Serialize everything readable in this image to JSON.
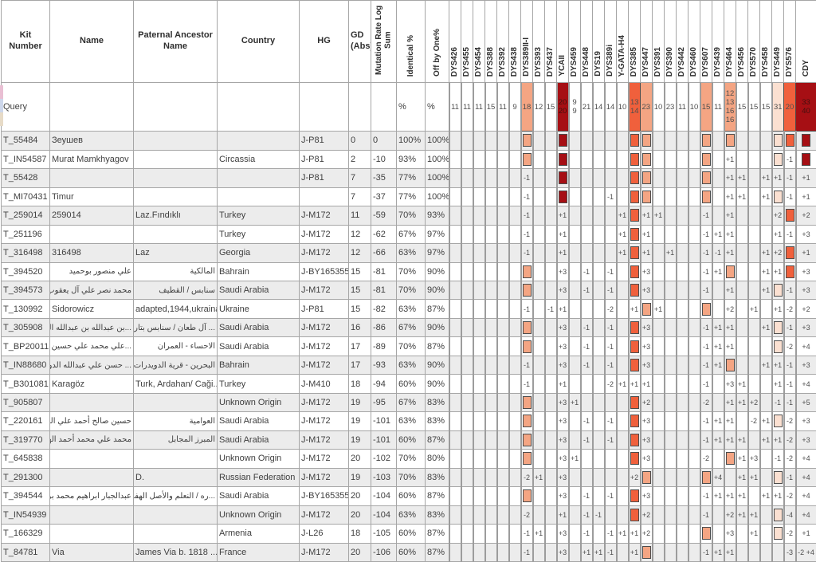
{
  "palette": {
    "highlight_light": "#f4a583",
    "highlight_strong": "#f0603c",
    "highlight_dark": "#a60f14",
    "highlight_pale": "#fbe0d1",
    "alt_row": "#ececec",
    "grid": "#a6a6a6"
  },
  "edge_artifact_colors": [
    "#e9bfd3",
    "#cdd7eb",
    "#e7dbc7"
  ],
  "table": {
    "info_headers": [
      "Kit Number",
      "Name",
      "Paternal Ancestor Name",
      "Country",
      "HG",
      "GD (Abs)"
    ],
    "rotated_headers": [
      "Mutation Rate Log Sum",
      "Identical %",
      "Off by One%"
    ],
    "marker_headers": [
      "DYS426",
      "DYS455",
      "DYS454",
      "DYS388",
      "DYS392",
      "DYS438",
      "DYS389II-I",
      "DYS393",
      "DYS437",
      "YCAII",
      "DYS459",
      "DYS448",
      "DYS19",
      "DYS389i",
      "Y-GATA-H4",
      "DYS385",
      "DYS447",
      "DYS391",
      "DYS390",
      "DYS442",
      "DYS460",
      "DYS607",
      "DYS439",
      "DYS464",
      "DYS456",
      "DYS570",
      "DYS458",
      "DYS449",
      "DYS576",
      "CDY"
    ],
    "marker_highlights": {
      "DYS389II-I": "light",
      "YCAII": "dark",
      "DYS385": "strong",
      "DYS447": "light",
      "DYS607": "light",
      "DYS464": "light",
      "DYS449": "pale",
      "DYS576": "strong",
      "CDY": "dark"
    },
    "query_row": {
      "label": "Query",
      "identical": "%",
      "off_by_one": "%",
      "markers": [
        "11",
        "11",
        "11",
        "15",
        "11",
        "9",
        "18",
        "12",
        "15",
        "20/20",
        "9/9",
        "21",
        "14",
        "14",
        "10",
        "13/14",
        "23",
        "10",
        "23",
        "11",
        "10",
        "15",
        "11",
        "12/13/16/16",
        "15",
        "15",
        "15",
        "31",
        "20",
        "33/40"
      ]
    },
    "rows": [
      {
        "kit": "T_55484",
        "name": "Зеушев",
        "paternal": "",
        "country": "",
        "hg": "J-P81",
        "gd": "0",
        "mut_rate": "0",
        "identical": "100%",
        "off_by_one": "100%",
        "markers": {
          "DYS389II-I": "box",
          "YCAII": "box",
          "DYS385": "box",
          "DYS447": "box",
          "DYS607": "box",
          "DYS464": "box",
          "DYS449": "box",
          "DYS576": "box",
          "CDY": "box"
        }
      },
      {
        "kit": "T_IN54587",
        "name": "Murat Mamkhyagov",
        "paternal": "",
        "country": "Circassia",
        "hg": "J-P81",
        "gd": "2",
        "mut_rate": "-10",
        "identical": "93%",
        "off_by_one": "100%",
        "markers": {
          "DYS389II-I": "box",
          "YCAII": "box",
          "DYS385": "box",
          "DYS447": "box",
          "DYS607": "box",
          "DYS464": "+1",
          "DYS449": "box",
          "DYS576": "-1",
          "CDY": "box"
        }
      },
      {
        "kit": "T_55428",
        "name": "",
        "paternal": "",
        "country": "",
        "hg": "J-P81",
        "gd": "7",
        "mut_rate": "-35",
        "identical": "77%",
        "off_by_one": "100%",
        "markers": {
          "DYS389II-I": "-1",
          "YCAII": "box",
          "DYS385": "box",
          "DYS447": "box",
          "DYS607": "box",
          "DYS464": "+1",
          "DYS456": "+1",
          "DYS458": "+1",
          "DYS449": "+1",
          "DYS576": "-1",
          "CDY": "+1"
        }
      },
      {
        "kit": "T_MI70431",
        "name": "Timur",
        "paternal": "",
        "country": "",
        "hg": "",
        "gd": "7",
        "mut_rate": "-37",
        "identical": "77%",
        "off_by_one": "100%",
        "markers": {
          "DYS389II-I": "-1",
          "YCAII": "box",
          "DYS389i": "-1",
          "DYS385": "box",
          "DYS447": "box",
          "DYS607": "box",
          "DYS464": "+1",
          "DYS456": "+1",
          "DYS458": "+1",
          "DYS449": "box",
          "DYS576": "-1",
          "CDY": "+1"
        }
      },
      {
        "kit": "T_259014",
        "name": "259014",
        "paternal": "Laz.Fındıklı",
        "country": "Turkey",
        "hg": "J-M172",
        "gd": "11",
        "mut_rate": "-59",
        "identical": "70%",
        "off_by_one": "93%",
        "markers": {
          "DYS389II-I": "-1",
          "YCAII": "+1",
          "Y-GATA-H4": "+1",
          "DYS385": "box",
          "DYS447": "+1",
          "DYS391": "+1",
          "DYS607": "-1",
          "DYS464": "+1",
          "DYS449": "+2",
          "DYS576": "box",
          "CDY": "+2"
        }
      },
      {
        "kit": "T_251196",
        "name": "",
        "paternal": "",
        "country": "Turkey",
        "hg": "J-M172",
        "gd": "12",
        "mut_rate": "-62",
        "identical": "67%",
        "off_by_one": "97%",
        "markers": {
          "DYS389II-I": "-1",
          "YCAII": "+1",
          "Y-GATA-H4": "+1",
          "DYS385": "box",
          "DYS447": "+1",
          "DYS607": "-1",
          "DYS439": "+1",
          "DYS464": "+1",
          "DYS449": "+1",
          "DYS576": "-1",
          "CDY": "+3"
        }
      },
      {
        "kit": "T_316498",
        "name": "316498",
        "paternal": "Laz",
        "country": "Georgia",
        "hg": "J-M172",
        "gd": "12",
        "mut_rate": "-66",
        "identical": "63%",
        "off_by_one": "97%",
        "markers": {
          "DYS389II-I": "-1",
          "YCAII": "+1",
          "Y-GATA-H4": "+1",
          "DYS385": "box",
          "DYS447": "+1",
          "DYS390": "+1",
          "DYS607": "-1",
          "DYS439": "-1",
          "DYS464": "+1",
          "DYS458": "+1",
          "DYS449": "+2",
          "DYS576": "box",
          "CDY": "+1"
        }
      },
      {
        "kit": "T_394520",
        "name": "علي منصور بوحميد",
        "paternal": "المالكية",
        "country": "Bahrain",
        "hg": "J-BY165355",
        "gd": "15",
        "mut_rate": "-81",
        "identical": "70%",
        "off_by_one": "90%",
        "markers": {
          "DYS389II-I": "box",
          "YCAII": "+3",
          "DYS448": "-1",
          "DYS389i": "-1",
          "DYS385": "box",
          "DYS447": "+3",
          "DYS607": "-1",
          "DYS439": "+1",
          "DYS464": "box",
          "DYS458": "+1",
          "DYS449": "+1",
          "DYS576": "box",
          "CDY": "+3"
        }
      },
      {
        "kit": "T_394573",
        "name": "محمد نصر علي آل يعقوب",
        "paternal": "سنابس / القطيف",
        "country": "Saudi Arabia",
        "hg": "J-M172",
        "gd": "15",
        "mut_rate": "-81",
        "identical": "70%",
        "off_by_one": "90%",
        "markers": {
          "DYS389II-I": "box",
          "YCAII": "+3",
          "DYS448": "-1",
          "DYS389i": "-1",
          "DYS385": "box",
          "DYS447": "+3",
          "DYS607": "-1",
          "DYS464": "+1",
          "DYS458": "+1",
          "DYS449": "box",
          "DYS576": "-1",
          "CDY": "+3"
        }
      },
      {
        "kit": "T_130992",
        "name": "Sidorowicz",
        "paternal": "adapted,1944,ukraina",
        "country": "Ukraine",
        "hg": "J-P81",
        "gd": "15",
        "mut_rate": "-82",
        "identical": "63%",
        "off_by_one": "87%",
        "markers": {
          "DYS389II-I": "-1",
          "DYS437": "-1",
          "YCAII": "+1",
          "DYS389i": "-2",
          "DYS385": "+1",
          "DYS447": "box",
          "DYS391": "+1",
          "DYS607": "box",
          "DYS464": "+2",
          "DYS570": "+1",
          "DYS449": "+1",
          "DYS576": "-2",
          "CDY": "+2"
        }
      },
      {
        "kit": "T_305908",
        "name": "...بن عبدالله بن عبدالله البحارنة",
        "paternal": "... آل طعان / سنابس بتاروت",
        "country": "Saudi Arabia",
        "hg": "J-M172",
        "gd": "16",
        "mut_rate": "-86",
        "identical": "67%",
        "off_by_one": "90%",
        "markers": {
          "DYS389II-I": "box",
          "YCAII": "+3",
          "DYS448": "-1",
          "DYS389i": "-1",
          "DYS385": "box",
          "DYS447": "+3",
          "DYS607": "-1",
          "DYS439": "+1",
          "DYS464": "+1",
          "DYS458": "+1",
          "DYS449": "box",
          "DYS576": "-1",
          "CDY": "+3"
        }
      },
      {
        "kit": "T_BP20011",
        "name": "...علي محمد علي حسين العلي",
        "paternal": "الاحساء - العمران",
        "country": "Saudi Arabia",
        "hg": "J-M172",
        "gd": "17",
        "mut_rate": "-89",
        "identical": "70%",
        "off_by_one": "87%",
        "markers": {
          "DYS389II-I": "box",
          "YCAII": "+3",
          "DYS448": "-1",
          "DYS389i": "-1",
          "DYS385": "box",
          "DYS447": "+3",
          "DYS607": "-1",
          "DYS439": "+1",
          "DYS464": "+1",
          "DYS449": "box",
          "DYS576": "-2",
          "CDY": "+4"
        }
      },
      {
        "kit": "T_IN88680",
        "name": "... حسن علي عبدالله الدويدري",
        "paternal": "البحرين - قرية الدويدرات",
        "country": "Bahrain",
        "hg": "J-M172",
        "gd": "17",
        "mut_rate": "-93",
        "identical": "63%",
        "off_by_one": "90%",
        "markers": {
          "DYS389II-I": "-1",
          "YCAII": "+3",
          "DYS448": "-1",
          "DYS389i": "-1",
          "DYS385": "box",
          "DYS447": "+3",
          "DYS607": "-1",
          "DYS439": "+1",
          "DYS464": "box",
          "DYS458": "+1",
          "DYS449": "+1",
          "DYS576": "-1",
          "CDY": "+3"
        }
      },
      {
        "kit": "T_B301081",
        "name": "Karagöz",
        "paternal": "Turk, Ardahan/ Caği...",
        "country": "Turkey",
        "hg": "J-M410",
        "gd": "18",
        "mut_rate": "-94",
        "identical": "60%",
        "off_by_one": "90%",
        "markers": {
          "DYS389II-I": "-1",
          "YCAII": "+1",
          "DYS389i": "-2",
          "Y-GATA-H4": "+1",
          "DYS385": "+1",
          "DYS447": "+1",
          "DYS607": "-1",
          "DYS464": "+3",
          "DYS456": "+1",
          "DYS449": "+1",
          "DYS576": "-1",
          "CDY": "+4"
        }
      },
      {
        "kit": "T_905807",
        "name": "",
        "paternal": "",
        "country": "Unknown Origin",
        "hg": "J-M172",
        "gd": "19",
        "mut_rate": "-95",
        "identical": "67%",
        "off_by_one": "83%",
        "markers": {
          "DYS389II-I": "box",
          "YCAII": "+3",
          "DYS459": "+1",
          "DYS385": "box",
          "DYS447": "+2",
          "DYS607": "-2",
          "DYS464": "+1",
          "DYS456": "+1",
          "DYS570": "+2",
          "DYS449": "-1",
          "DYS576": "-1",
          "CDY": "+5"
        }
      },
      {
        "kit": "T_220161",
        "name": "حسين صالح أحمد علي المبيوق",
        "paternal": "العوامية",
        "country": "Saudi Arabia",
        "hg": "J-M172",
        "gd": "19",
        "mut_rate": "-101",
        "identical": "63%",
        "off_by_one": "83%",
        "markers": {
          "DYS389II-I": "box",
          "YCAII": "+3",
          "DYS448": "-1",
          "DYS389i": "-1",
          "DYS385": "box",
          "DYS447": "+3",
          "DYS607": "-1",
          "DYS439": "+1",
          "DYS464": "+1",
          "DYS570": "-2",
          "DYS458": "+1",
          "DYS449": "box",
          "DYS576": "-2",
          "CDY": "+3"
        }
      },
      {
        "kit": "T_319770",
        "name": "محمد علي محمد أحمد الهفوفي",
        "paternal": "المبرز المجابل",
        "country": "Saudi Arabia",
        "hg": "J-M172",
        "gd": "19",
        "mut_rate": "-101",
        "identical": "60%",
        "off_by_one": "87%",
        "markers": {
          "DYS389II-I": "box",
          "YCAII": "+3",
          "DYS448": "-1",
          "DYS389i": "-1",
          "DYS385": "box",
          "DYS447": "+3",
          "DYS607": "-1",
          "DYS439": "+1",
          "DYS464": "+1",
          "DYS456": "+1",
          "DYS458": "+1",
          "DYS449": "+1",
          "DYS576": "-2",
          "CDY": "+3"
        }
      },
      {
        "kit": "T_645838",
        "name": "",
        "paternal": "",
        "country": "Unknown Origin",
        "hg": "J-M172",
        "gd": "20",
        "mut_rate": "-102",
        "identical": "70%",
        "off_by_one": "80%",
        "markers": {
          "DYS389II-I": "box",
          "YCAII": "+3",
          "DYS459": "+1",
          "DYS385": "box",
          "DYS447": "+3",
          "DYS607": "-2",
          "DYS464": "box",
          "DYS456": "+1",
          "DYS570": "+3",
          "DYS449": "-1",
          "DYS576": "-2",
          "CDY": "+4"
        }
      },
      {
        "kit": "T_291300",
        "name": "",
        "paternal": "D.",
        "country": "Russian Federation",
        "hg": "J-M172",
        "gd": "19",
        "mut_rate": "-103",
        "identical": "70%",
        "off_by_one": "83%",
        "markers": {
          "DYS389II-I": "-2",
          "DYS393": "+1",
          "YCAII": "+3",
          "DYS385": "+2",
          "DYS447": "box",
          "DYS607": "box",
          "DYS439": "+4",
          "DYS456": "+1",
          "DYS570": "+1",
          "DYS449": "box",
          "DYS576": "-1",
          "CDY": "+4"
        }
      },
      {
        "kit": "T_394544",
        "name": "عبدالجبار ابراهيم محمد بومره...",
        "paternal": "...ره / النعلم والأصل الهفوف",
        "country": "Saudi Arabia",
        "hg": "J-BY165355",
        "gd": "20",
        "mut_rate": "-104",
        "identical": "60%",
        "off_by_one": "87%",
        "markers": {
          "DYS389II-I": "box",
          "YCAII": "+3",
          "DYS448": "-1",
          "DYS389i": "-1",
          "DYS385": "box",
          "DYS447": "+3",
          "DYS607": "-1",
          "DYS439": "+1",
          "DYS464": "+1",
          "DYS456": "+1",
          "DYS458": "+1",
          "DYS449": "+1",
          "DYS576": "-2",
          "CDY": "+4"
        }
      },
      {
        "kit": "T_IN54939",
        "name": "",
        "paternal": "",
        "country": "Unknown Origin",
        "hg": "J-M172",
        "gd": "20",
        "mut_rate": "-104",
        "identical": "63%",
        "off_by_one": "83%",
        "markers": {
          "DYS389II-I": "-2",
          "YCAII": "+1",
          "DYS448": "-1",
          "DYS19": "-1",
          "DYS385": "box",
          "DYS447": "+2",
          "DYS607": "-1",
          "DYS464": "+2",
          "DYS456": "+1",
          "DYS570": "+1",
          "DYS449": "box",
          "DYS576": "-4",
          "CDY": "+4"
        }
      },
      {
        "kit": "T_166329",
        "name": "",
        "paternal": "",
        "country": "Armenia",
        "hg": "J-L26",
        "gd": "18",
        "mut_rate": "-105",
        "identical": "60%",
        "off_by_one": "87%",
        "markers": {
          "DYS389II-I": "-1",
          "DYS393": "+1",
          "YCAII": "+3",
          "DYS448": "-1",
          "DYS389i": "-1",
          "Y-GATA-H4": "+1",
          "DYS385": "+1",
          "DYS447": "+2",
          "DYS607": "box",
          "DYS464": "+3",
          "DYS570": "+1",
          "DYS449": "box",
          "DYS576": "-2",
          "CDY": "+1"
        }
      },
      {
        "kit": "T_84781",
        "name": "Via",
        "paternal": "James Via b. 1818 ...",
        "country": "France",
        "hg": "J-M172",
        "gd": "20",
        "mut_rate": "-106",
        "identical": "60%",
        "off_by_one": "87%",
        "markers": {
          "DYS389II-I": "-1",
          "YCAII": "+3",
          "DYS448": "+1",
          "DYS19": "+1",
          "DYS389i": "-1",
          "DYS385": "+1",
          "DYS447": "box",
          "DYS607": "-1",
          "DYS439": "+1",
          "DYS464": "+1",
          "DYS576": "-3",
          "CDY": "-2 +4"
        }
      }
    ]
  }
}
